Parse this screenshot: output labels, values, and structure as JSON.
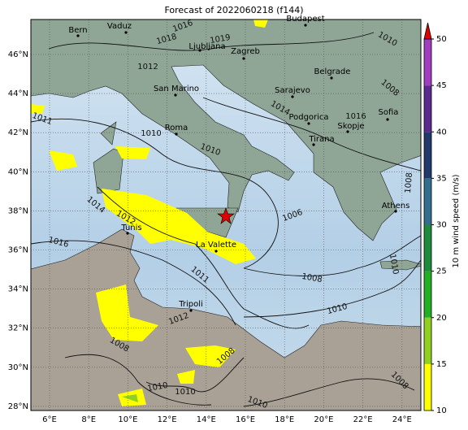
{
  "title": "Forecast of 2022060218 (f144)",
  "lon_labels": [
    "6°E",
    "8°E",
    "10°E",
    "12°E",
    "14°E",
    "16°E",
    "18°E",
    "20°E",
    "22°E",
    "24°E"
  ],
  "lat_labels": [
    "46°N",
    "44°N",
    "42°N",
    "40°N",
    "38°N",
    "36°N",
    "34°N",
    "32°N",
    "30°N",
    "28°N"
  ],
  "cities": [
    "Bern",
    "Vaduz",
    "Budapest",
    "Ljubljana",
    "Zagreb",
    "San Marino",
    "Belgrade",
    "Sarajevo",
    "Roma",
    "Podgorica",
    "Skopje",
    "Sofia",
    "Tirana",
    "Athens",
    "Tunis",
    "La Valette",
    "Tripoli"
  ],
  "isobar_labels": [
    1018,
    1016,
    1019,
    1012,
    1010,
    1010,
    1011,
    1014,
    1012,
    1016,
    1011,
    1008,
    1010,
    1006,
    1008,
    1010,
    1008,
    1012,
    1008,
    1008,
    1010,
    1010,
    1010,
    1010,
    1008,
    1016,
    1014
  ],
  "colorbar": {
    "label": "10 m wind speed (m/s)",
    "ticks": [
      10,
      15,
      20,
      25,
      30,
      35,
      40,
      45,
      50
    ],
    "colors": [
      "#ffff00",
      "#8fd11e",
      "#22b022",
      "#1d8a3c",
      "#336e8f",
      "#213a6b",
      "#5a2a8f",
      "#a23dbf"
    ],
    "extend_color": "#e00000"
  }
}
